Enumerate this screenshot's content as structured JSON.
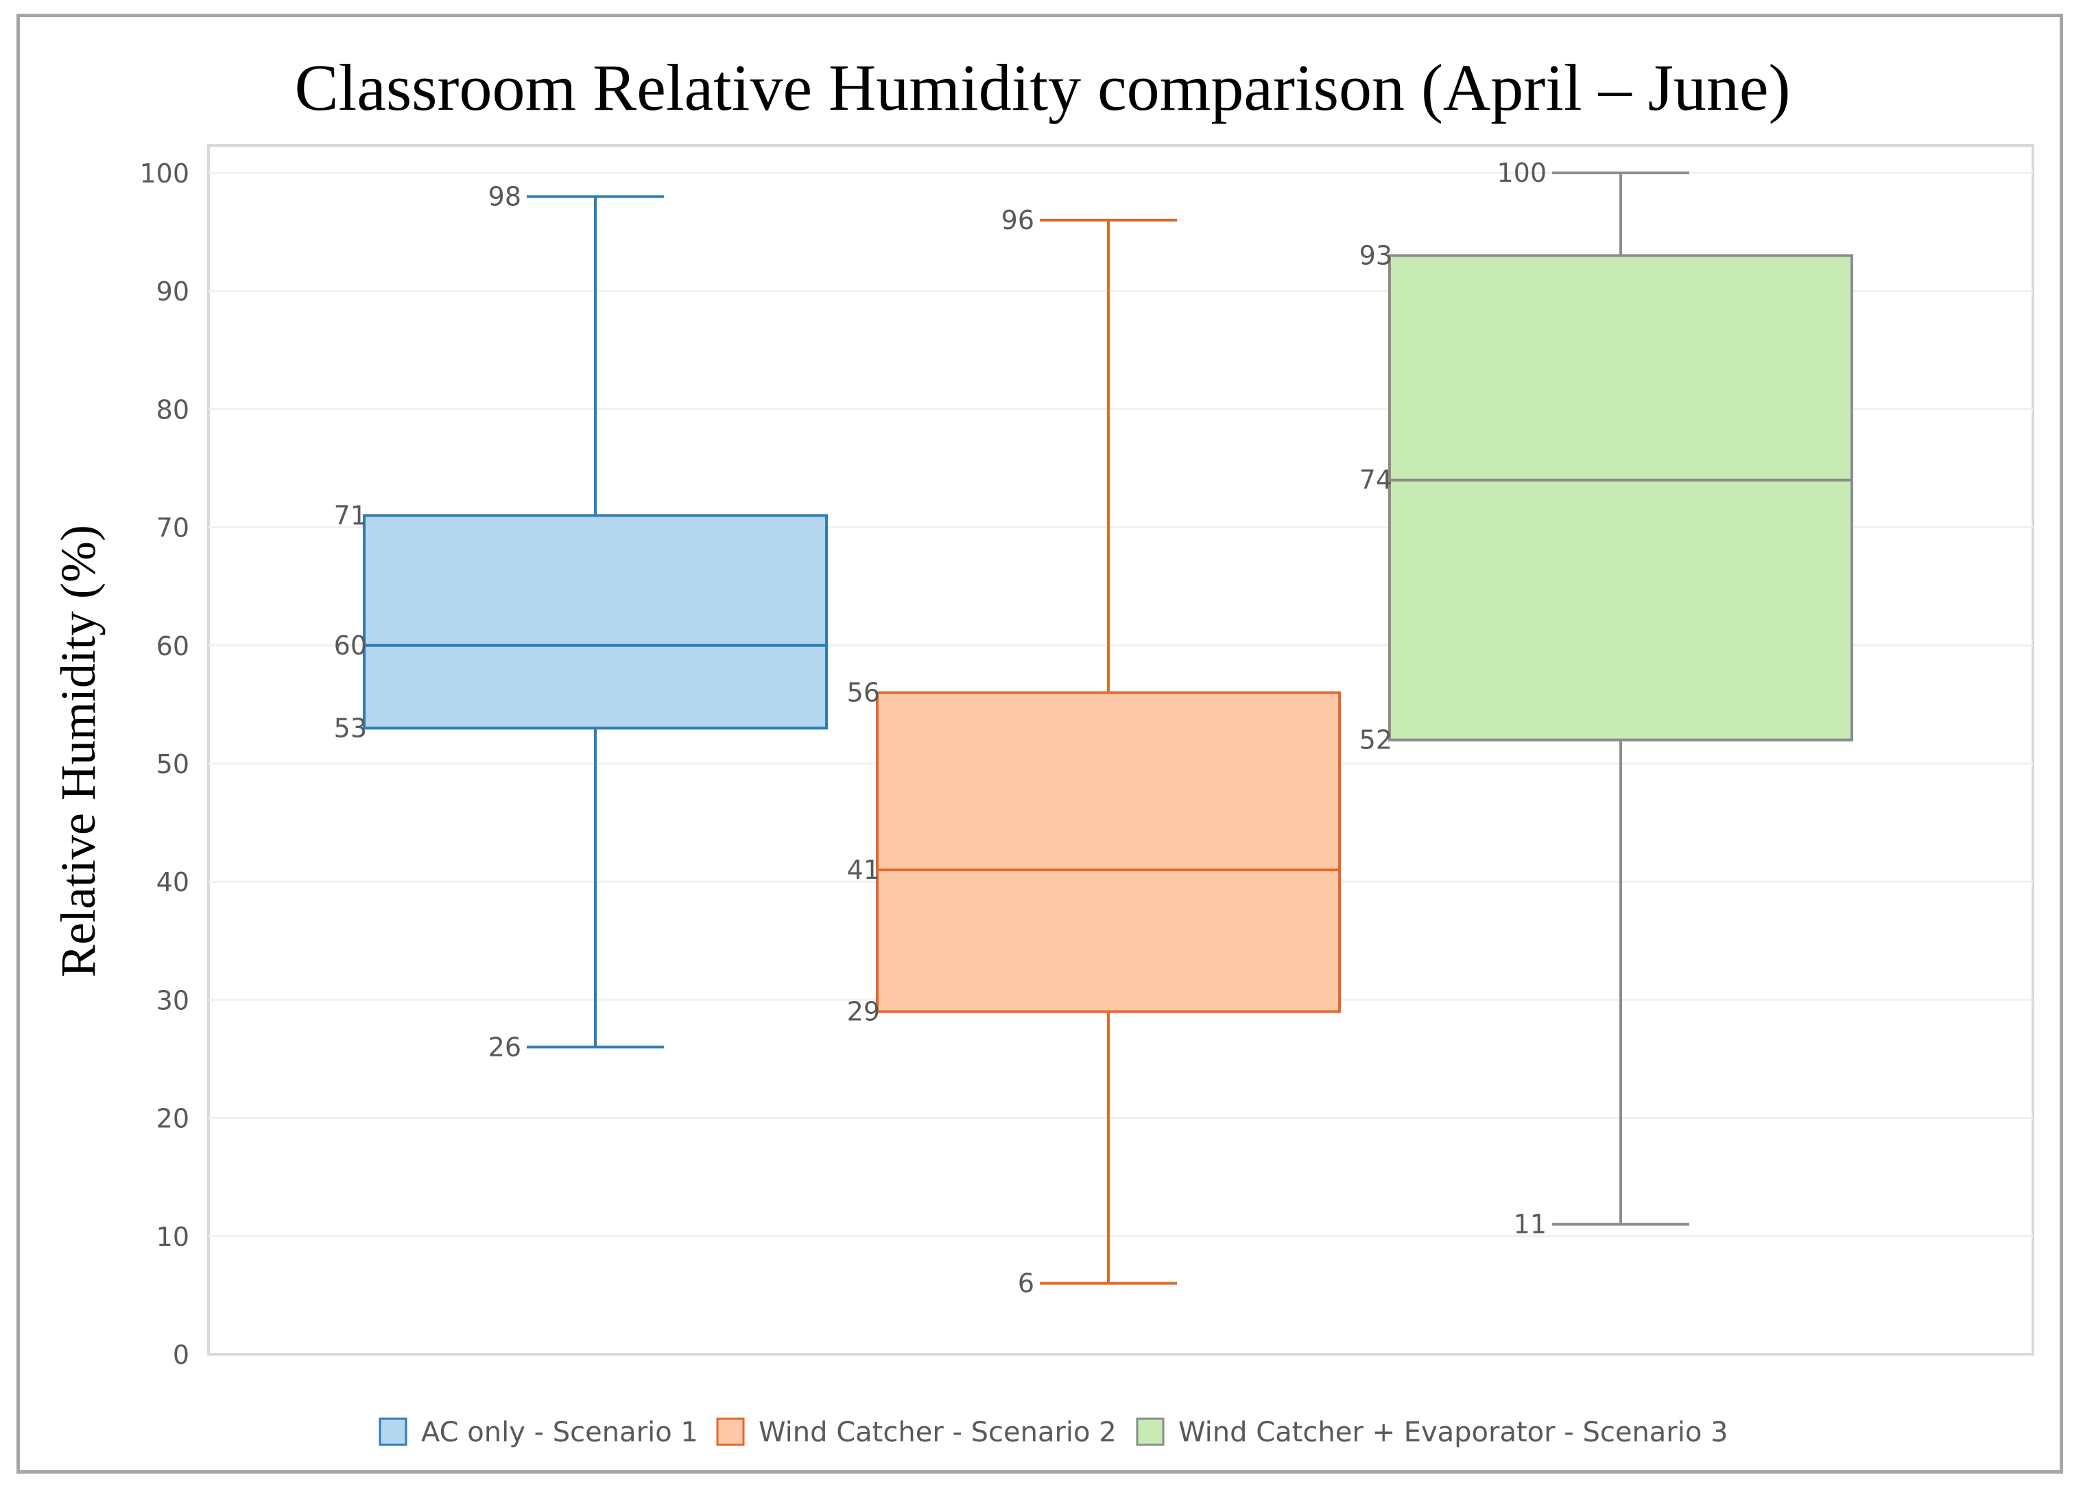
{
  "chart_data": {
    "type": "boxplot",
    "title": "Classroom Relative Humidity comparison (April – June)",
    "ylabel": "Relative Humidity (%)",
    "xlabel": "",
    "ylim": [
      0,
      100
    ],
    "yticks": [
      0,
      10,
      20,
      30,
      40,
      50,
      60,
      70,
      80,
      90,
      100
    ],
    "grid": true,
    "legend_position": "bottom",
    "series": [
      {
        "name": "AC only - Scenario 1",
        "min": 26,
        "q1": 53,
        "median": 60,
        "q3": 71,
        "max": 98,
        "fill": "#b4d6ee",
        "stroke": "#2e7db5"
      },
      {
        "name": "Wind Catcher - Scenario 2",
        "min": 6,
        "q1": 29,
        "median": 41,
        "q3": 56,
        "max": 96,
        "fill": "#fdc8a7",
        "stroke": "#e06a2b"
      },
      {
        "name": "Wind Catcher + Evaporator - Scenario 3",
        "min": 11,
        "q1": 52,
        "median": 74,
        "q3": 93,
        "max": 100,
        "fill": "#c8ebb5",
        "stroke": "#8c8c8c"
      }
    ]
  }
}
